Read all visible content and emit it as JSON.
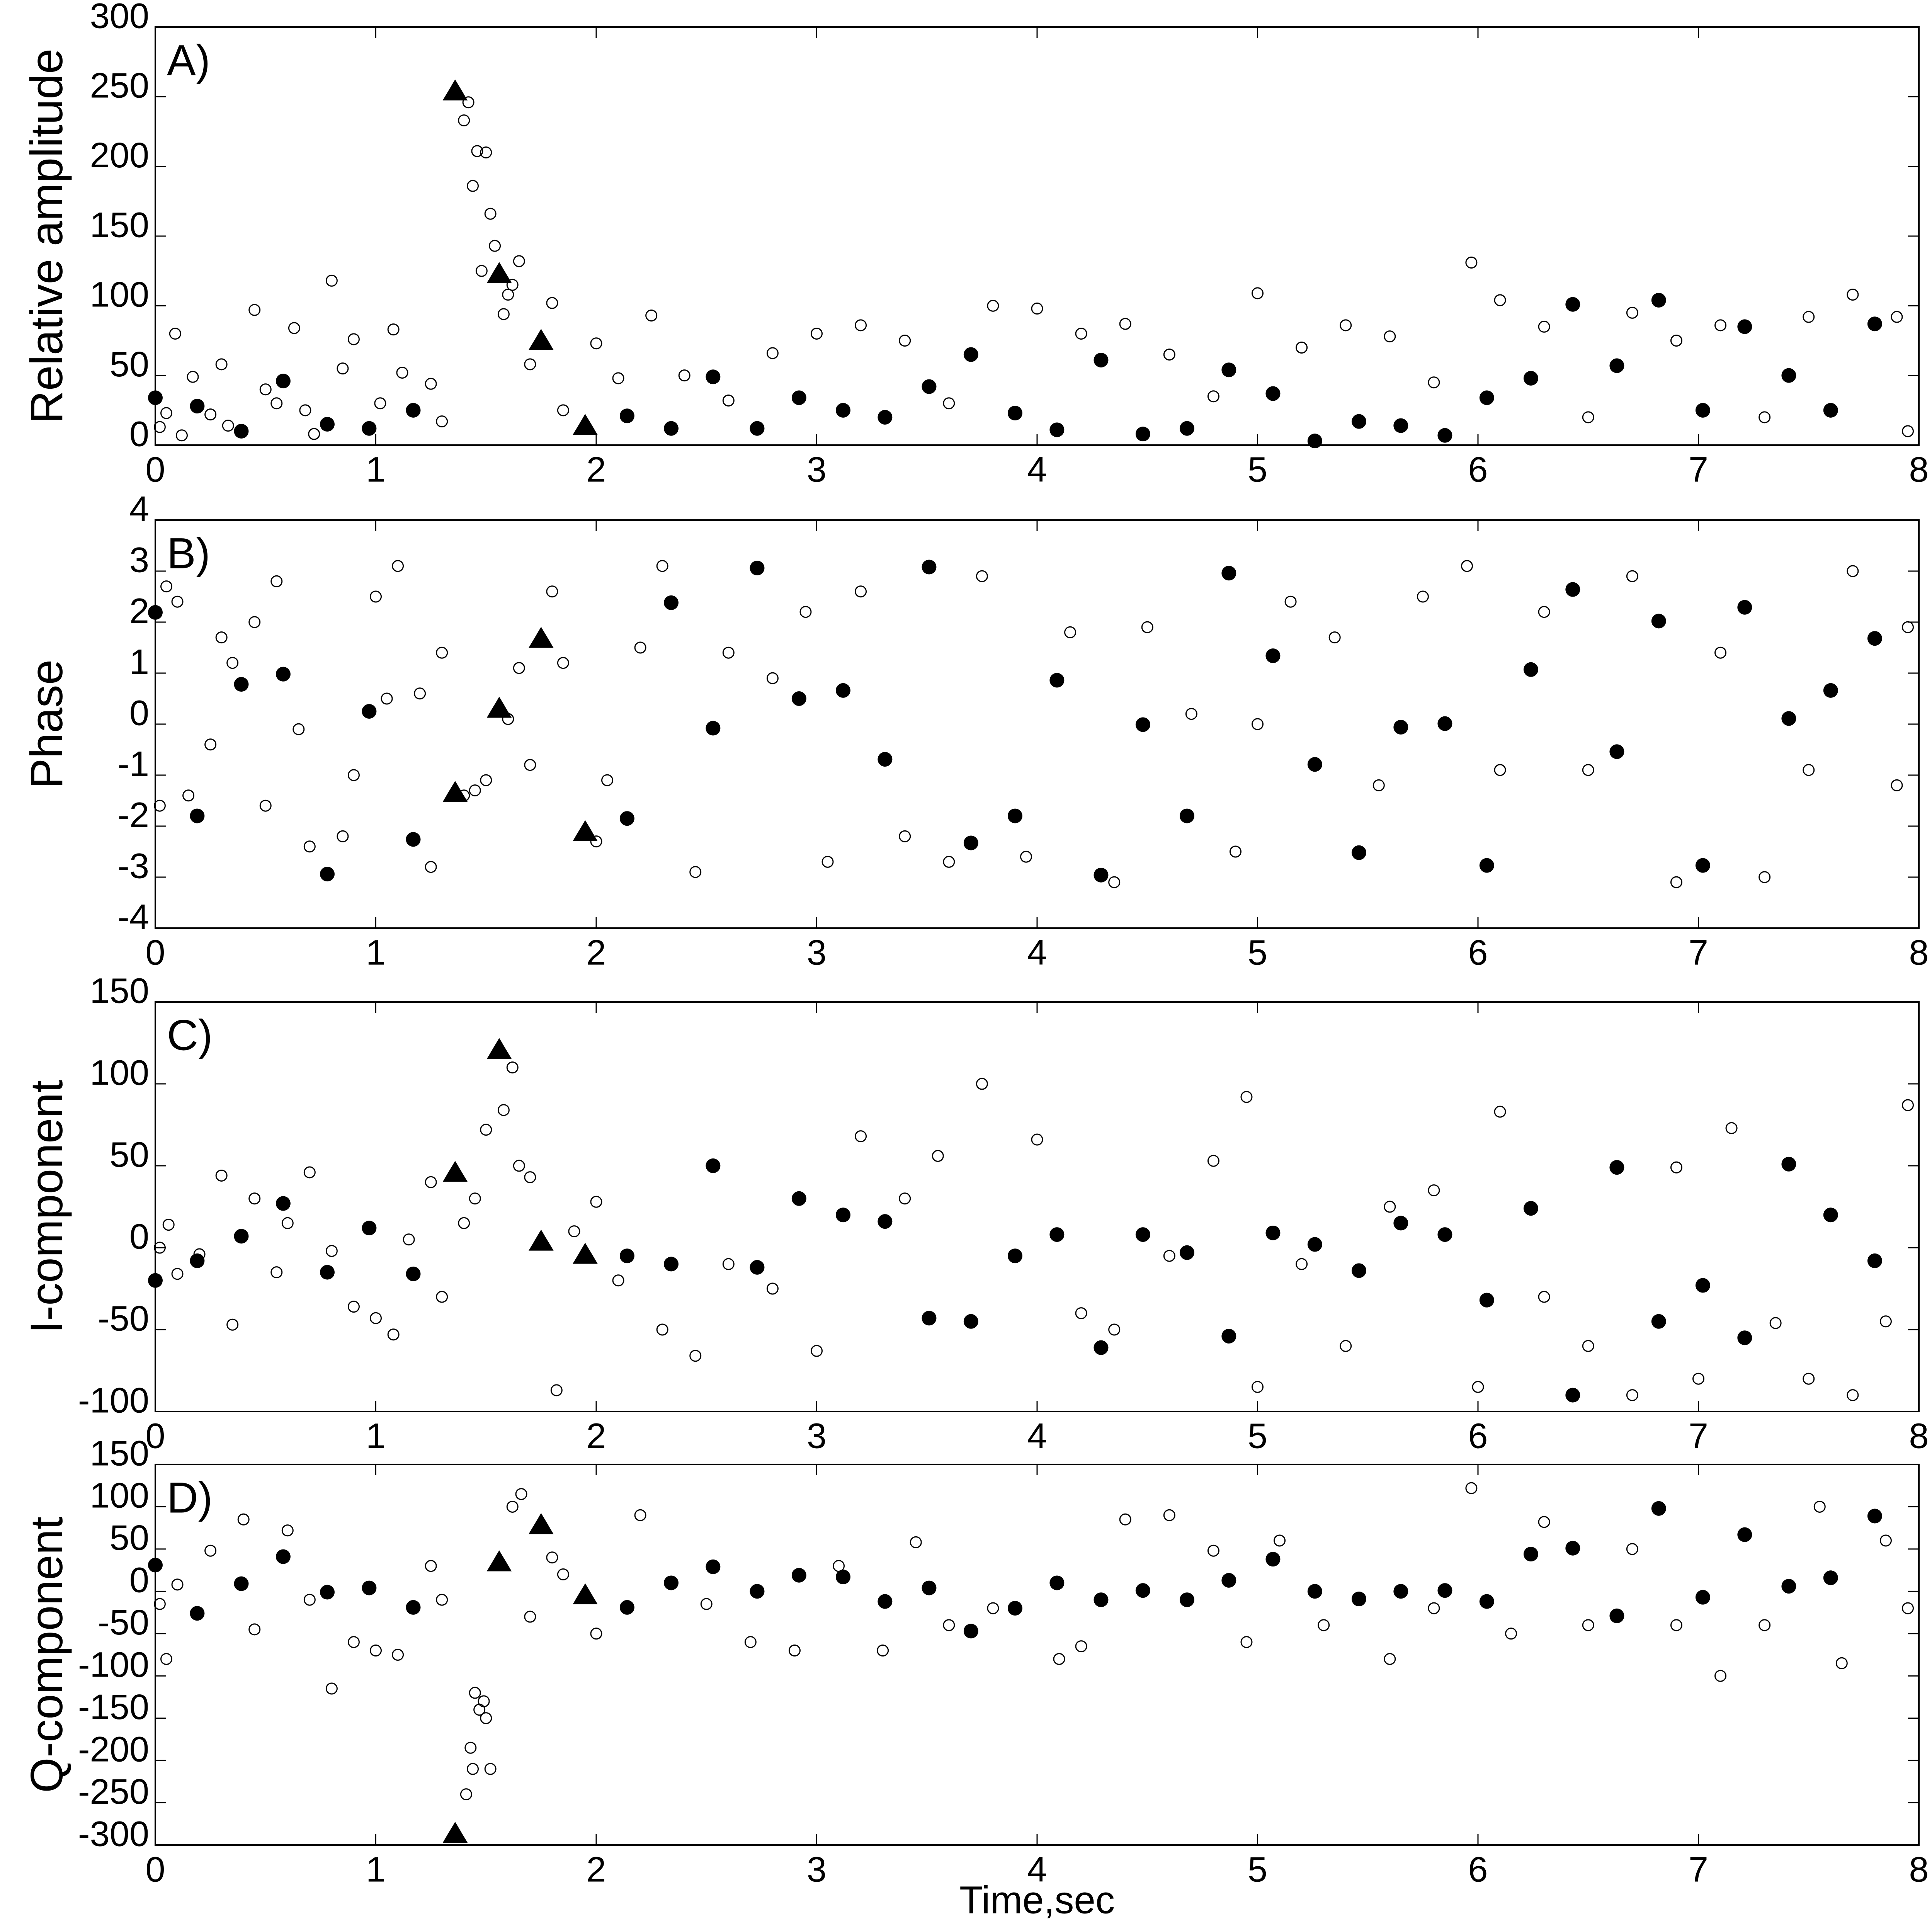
{
  "chart_data": [
    {
      "type": "scatter",
      "panel_label": "A)",
      "ylabel": "Relative amplitude",
      "xlim": [
        0,
        8
      ],
      "xticks": [
        0,
        1,
        2,
        3,
        4,
        5,
        6,
        7,
        8
      ],
      "ylim": [
        0,
        300
      ],
      "yticks": [
        0,
        50,
        100,
        150,
        200,
        250,
        300
      ],
      "series": [
        {
          "marker": "open-circle",
          "color": "#000000",
          "x": [
            0.02,
            0.05,
            0.09,
            0.12,
            0.17,
            0.25,
            0.3,
            0.33,
            0.45,
            0.5,
            0.55,
            0.63,
            0.68,
            0.72,
            0.8,
            0.85,
            0.9,
            1.02,
            1.08,
            1.12,
            1.25,
            1.3,
            1.4,
            1.42,
            1.44,
            1.46,
            1.48,
            1.5,
            1.52,
            1.54,
            1.58,
            1.6,
            1.62,
            1.65,
            1.7,
            1.8,
            1.85,
            2.0,
            2.1,
            2.25,
            2.4,
            2.6,
            2.8,
            3.0,
            3.2,
            3.4,
            3.6,
            3.8,
            4.0,
            4.2,
            4.4,
            4.6,
            4.8,
            5.0,
            5.2,
            5.4,
            5.6,
            5.8,
            5.97,
            6.1,
            6.3,
            6.5,
            6.7,
            6.9,
            7.1,
            7.3,
            7.5,
            7.7,
            7.9,
            7.95
          ],
          "values": [
            13,
            23,
            80,
            7,
            49,
            22,
            58,
            14,
            97,
            40,
            30,
            84,
            25,
            8,
            118,
            55,
            76,
            30,
            83,
            52,
            44,
            17,
            233,
            246,
            186,
            211,
            125,
            210,
            166,
            143,
            94,
            108,
            115,
            132,
            58,
            102,
            25,
            73,
            48,
            93,
            50,
            32,
            66,
            80,
            86,
            75,
            30,
            100,
            98,
            80,
            87,
            65,
            35,
            109,
            70,
            86,
            78,
            45,
            131,
            104,
            85,
            20,
            95,
            75,
            86,
            20,
            92,
            108,
            92,
            10
          ]
        },
        {
          "marker": "circle",
          "color": "#000000",
          "x": [
            0,
            0.19,
            0.39,
            0.58,
            0.78,
            0.97,
            1.17,
            2.14,
            2.34,
            2.53,
            2.73,
            2.92,
            3.12,
            3.31,
            3.51,
            3.7,
            3.9,
            4.09,
            4.29,
            4.48,
            4.68,
            4.87,
            5.07,
            5.26,
            5.46,
            5.65,
            5.85,
            6.04,
            6.24,
            6.43,
            6.63,
            6.82,
            7.02,
            7.21,
            7.41,
            7.6,
            7.8
          ],
          "values": [
            34,
            28,
            10,
            46,
            15,
            12,
            25,
            21,
            12,
            49,
            12,
            34,
            25,
            20,
            42,
            65,
            23,
            11,
            61,
            8,
            12,
            54,
            37,
            3,
            17,
            14,
            7,
            34,
            48,
            101,
            57,
            104,
            25,
            85,
            50,
            25,
            87
          ]
        },
        {
          "marker": "triangle",
          "color": "#000000",
          "x": [
            1.36,
            1.56,
            1.75,
            1.95
          ],
          "values": [
            253,
            122,
            74,
            13
          ]
        }
      ]
    },
    {
      "type": "scatter",
      "panel_label": "B)",
      "ylabel": "Phase",
      "xlim": [
        0,
        8
      ],
      "xticks": [
        0,
        1,
        2,
        3,
        4,
        5,
        6,
        7,
        8
      ],
      "ylim": [
        -4,
        4
      ],
      "yticks": [
        -4,
        -3,
        -2,
        -1,
        0,
        1,
        2,
        3,
        4
      ],
      "series": [
        {
          "marker": "open-circle",
          "color": "#000000",
          "x": [
            0.02,
            0.05,
            0.1,
            0.15,
            0.25,
            0.3,
            0.35,
            0.45,
            0.5,
            0.55,
            0.65,
            0.7,
            0.85,
            0.9,
            1.0,
            1.05,
            1.1,
            1.2,
            1.25,
            1.3,
            1.4,
            1.45,
            1.5,
            1.6,
            1.65,
            1.7,
            1.8,
            1.85,
            2.0,
            2.05,
            2.2,
            2.3,
            2.45,
            2.6,
            2.8,
            2.95,
            3.05,
            3.2,
            3.4,
            3.6,
            3.75,
            3.95,
            4.15,
            4.35,
            4.5,
            4.7,
            4.9,
            5.0,
            5.15,
            5.35,
            5.55,
            5.75,
            5.95,
            6.1,
            6.3,
            6.5,
            6.7,
            6.9,
            7.1,
            7.3,
            7.5,
            7.7,
            7.9,
            7.95
          ],
          "values": [
            -1.6,
            2.7,
            2.4,
            -1.4,
            -0.4,
            1.7,
            1.2,
            2.0,
            -1.6,
            2.8,
            -0.1,
            -2.4,
            -2.2,
            -1.0,
            2.5,
            0.5,
            3.1,
            0.6,
            -2.8,
            1.4,
            -1.4,
            -1.3,
            -1.1,
            0.1,
            1.1,
            -0.8,
            2.6,
            1.2,
            -2.3,
            -1.1,
            1.5,
            3.1,
            -2.9,
            1.4,
            0.9,
            2.2,
            -2.7,
            2.6,
            -2.2,
            -2.7,
            2.9,
            -2.6,
            1.8,
            -3.1,
            1.9,
            0.2,
            -2.5,
            0.0,
            2.4,
            1.7,
            -1.2,
            2.5,
            3.1,
            -0.9,
            2.2,
            -0.9,
            2.9,
            -3.1,
            1.4,
            -3.0,
            -0.9,
            3.0,
            -1.2,
            1.9
          ]
        },
        {
          "marker": "circle",
          "color": "#000000",
          "x": [
            0,
            0.19,
            0.39,
            0.58,
            0.78,
            0.97,
            1.17,
            2.14,
            2.34,
            2.53,
            2.73,
            2.92,
            3.12,
            3.31,
            3.51,
            3.7,
            3.9,
            4.09,
            4.29,
            4.48,
            4.68,
            4.87,
            5.07,
            5.26,
            5.46,
            5.65,
            5.85,
            6.04,
            6.24,
            6.43,
            6.63,
            6.82,
            7.02,
            7.21,
            7.41,
            7.6,
            7.8
          ],
          "values": [
            2.19,
            -1.8,
            0.78,
            0.98,
            -2.94,
            0.25,
            -2.26,
            -1.85,
            2.38,
            -0.08,
            3.06,
            0.5,
            0.66,
            -0.69,
            3.08,
            -2.33,
            -1.8,
            0.86,
            -2.96,
            -0.01,
            -1.8,
            2.96,
            1.34,
            -0.79,
            -2.52,
            -0.06,
            0.01,
            -2.77,
            1.07,
            2.64,
            -0.54,
            2.02,
            -2.77,
            2.29,
            0.11,
            0.66,
            1.68
          ]
        },
        {
          "marker": "triangle",
          "color": "#000000",
          "x": [
            1.36,
            1.56,
            1.75,
            1.95
          ],
          "values": [
            -1.37,
            0.28,
            1.65,
            -2.14
          ]
        }
      ]
    },
    {
      "type": "scatter",
      "panel_label": "C)",
      "ylabel": "I-component",
      "xlim": [
        0,
        8
      ],
      "xticks": [
        0,
        1,
        2,
        3,
        4,
        5,
        6,
        7,
        8
      ],
      "ylim": [
        -100,
        150
      ],
      "yticks": [
        -100,
        -50,
        0,
        50,
        100,
        150
      ],
      "series": [
        {
          "marker": "open-circle",
          "color": "#000000",
          "x": [
            0.02,
            0.06,
            0.1,
            0.2,
            0.3,
            0.35,
            0.45,
            0.55,
            0.6,
            0.7,
            0.8,
            0.9,
            1.0,
            1.08,
            1.15,
            1.25,
            1.3,
            1.4,
            1.45,
            1.5,
            1.58,
            1.62,
            1.65,
            1.7,
            1.82,
            1.9,
            2.0,
            2.1,
            2.3,
            2.45,
            2.6,
            2.8,
            3.0,
            3.2,
            3.4,
            3.55,
            3.75,
            4.0,
            4.2,
            4.35,
            4.6,
            4.8,
            4.95,
            5.0,
            5.2,
            5.4,
            5.6,
            5.8,
            6.0,
            6.1,
            6.3,
            6.5,
            6.7,
            6.9,
            7.0,
            7.15,
            7.35,
            7.5,
            7.7,
            7.85,
            7.95
          ],
          "values": [
            0,
            14,
            -16,
            -4,
            44,
            -47,
            30,
            -15,
            15,
            46,
            -2,
            -36,
            -43,
            -53,
            5,
            40,
            -30,
            15,
            30,
            72,
            84,
            110,
            50,
            43,
            -87,
            10,
            28,
            -20,
            -50,
            -66,
            -10,
            -25,
            -63,
            68,
            30,
            56,
            100,
            66,
            -40,
            -50,
            -5,
            53,
            92,
            -85,
            -10,
            -60,
            25,
            35,
            -85,
            83,
            -30,
            -60,
            -90,
            49,
            -80,
            73,
            -46,
            -80,
            -90,
            -45,
            87
          ]
        },
        {
          "marker": "circle",
          "color": "#000000",
          "x": [
            0,
            0.19,
            0.39,
            0.58,
            0.78,
            0.97,
            1.17,
            2.14,
            2.34,
            2.53,
            2.73,
            2.92,
            3.12,
            3.31,
            3.51,
            3.7,
            3.9,
            4.09,
            4.29,
            4.48,
            4.68,
            4.87,
            5.07,
            5.26,
            5.46,
            5.65,
            5.85,
            6.04,
            6.24,
            6.43,
            6.63,
            6.82,
            7.02,
            7.21,
            7.41,
            7.6,
            7.8
          ],
          "values": [
            -20,
            -8,
            7,
            27,
            -15,
            12,
            -16,
            -5,
            -10,
            50,
            -12,
            30,
            20,
            16,
            -43,
            -45,
            -5,
            8,
            -61,
            8,
            -3,
            -54,
            9,
            2,
            -14,
            15,
            8,
            -32,
            24,
            -90,
            49,
            -45,
            -23,
            -55,
            51,
            20,
            -8
          ]
        },
        {
          "marker": "triangle",
          "color": "#000000",
          "x": [
            1.36,
            1.56,
            1.75,
            1.95
          ],
          "values": [
            45,
            120,
            3,
            -5
          ]
        }
      ]
    },
    {
      "type": "scatter",
      "panel_label": "D)",
      "ylabel": "Q-component",
      "xlabel": "Time,sec",
      "xlim": [
        0,
        8
      ],
      "xticks": [
        0,
        1,
        2,
        3,
        4,
        5,
        6,
        7,
        8
      ],
      "ylim": [
        -300,
        150
      ],
      "yticks": [
        -300,
        -250,
        -200,
        -150,
        -100,
        -50,
        0,
        50,
        100,
        150
      ],
      "series": [
        {
          "marker": "open-circle",
          "color": "#000000",
          "x": [
            0.02,
            0.05,
            0.1,
            0.25,
            0.4,
            0.45,
            0.6,
            0.7,
            0.8,
            0.9,
            1.0,
            1.1,
            1.25,
            1.3,
            1.41,
            1.43,
            1.44,
            1.45,
            1.47,
            1.49,
            1.5,
            1.52,
            1.62,
            1.66,
            1.7,
            1.8,
            1.85,
            2.0,
            2.2,
            2.5,
            2.7,
            2.9,
            3.1,
            3.3,
            3.45,
            3.6,
            3.8,
            4.1,
            4.2,
            4.4,
            4.6,
            4.8,
            4.95,
            5.1,
            5.3,
            5.6,
            5.8,
            5.97,
            6.15,
            6.3,
            6.5,
            6.7,
            6.9,
            7.1,
            7.3,
            7.55,
            7.65,
            7.85,
            7.95
          ],
          "values": [
            -15,
            -80,
            8,
            48,
            85,
            -45,
            72,
            -10,
            -115,
            -60,
            -70,
            -75,
            30,
            -10,
            -240,
            -185,
            -210,
            -120,
            -140,
            -130,
            -150,
            -210,
            100,
            115,
            -30,
            40,
            20,
            -50,
            90,
            -15,
            -60,
            -70,
            30,
            -70,
            58,
            -40,
            -20,
            -80,
            -65,
            85,
            90,
            48,
            -60,
            60,
            -40,
            -80,
            -20,
            122,
            -50,
            82,
            -40,
            50,
            -40,
            -100,
            -40,
            100,
            -85,
            60,
            -20
          ]
        },
        {
          "marker": "circle",
          "color": "#000000",
          "x": [
            0,
            0.19,
            0.39,
            0.58,
            0.78,
            0.97,
            1.17,
            2.14,
            2.34,
            2.53,
            2.73,
            2.92,
            3.12,
            3.31,
            3.51,
            3.7,
            3.9,
            4.09,
            4.29,
            4.48,
            4.68,
            4.87,
            5.07,
            5.26,
            5.46,
            5.65,
            5.85,
            6.04,
            6.24,
            6.43,
            6.63,
            6.82,
            7.02,
            7.21,
            7.41,
            7.6,
            7.8
          ],
          "values": [
            31,
            -26,
            9,
            41,
            -1,
            4,
            -19,
            -19,
            10,
            29,
            0,
            19,
            17,
            -12,
            4,
            -47,
            -20,
            10,
            -10,
            1,
            -10,
            13,
            38,
            0,
            -9,
            0,
            1,
            -12,
            44,
            51,
            -29,
            98,
            -7,
            67,
            6,
            16,
            89
          ]
        },
        {
          "marker": "triangle",
          "color": "#000000",
          "x": [
            1.36,
            1.56,
            1.75,
            1.95
          ],
          "values": [
            -288,
            33,
            77,
            -6
          ]
        }
      ]
    }
  ]
}
